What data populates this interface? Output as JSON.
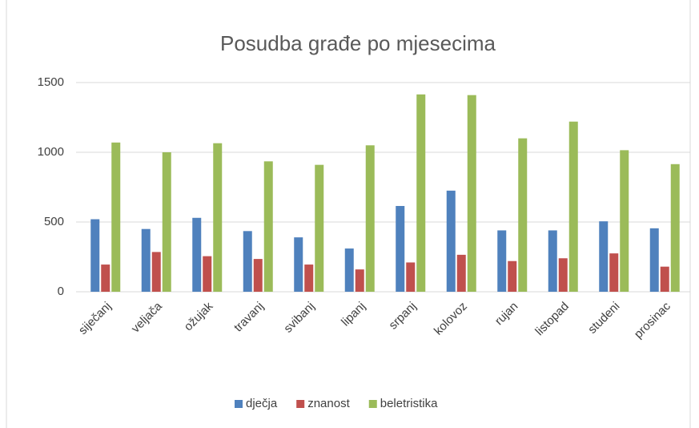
{
  "chart_data": {
    "type": "bar",
    "title": "Posudba građe po mjesecima",
    "categories": [
      "siječanj",
      "veljača",
      "ožujak",
      "travanj",
      "svibanj",
      "lipanj",
      "srpanj",
      "kolovoz",
      "rujan",
      "listopad",
      "studeni",
      "prosinac"
    ],
    "series": [
      {
        "name": "dječja",
        "color": "#4f81bd",
        "values": [
          520,
          450,
          530,
          435,
          390,
          310,
          615,
          725,
          440,
          440,
          505,
          455
        ]
      },
      {
        "name": "znanost",
        "color": "#c0504d",
        "values": [
          195,
          285,
          255,
          235,
          195,
          160,
          210,
          265,
          220,
          240,
          275,
          180
        ]
      },
      {
        "name": "beletristika",
        "color": "#9bbb59",
        "values": [
          1070,
          1000,
          1065,
          935,
          910,
          1050,
          1415,
          1410,
          1100,
          1220,
          1015,
          915
        ]
      }
    ],
    "ylim": [
      0,
      1500
    ],
    "yticks": [
      0,
      500,
      1000,
      1500
    ],
    "grid": true,
    "legend": "bottom"
  }
}
